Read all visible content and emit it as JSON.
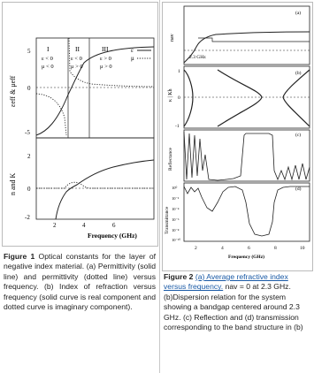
{
  "fig1": {
    "top": {
      "ylabel": "εeff & μeff",
      "yticks": [
        "5",
        "0",
        "-5"
      ],
      "regions": [
        {
          "roman": "I",
          "line1": "ε < 0",
          "line2": "μ < 0"
        },
        {
          "roman": "II",
          "line1": "ε < 0",
          "line2": "μ > 0"
        },
        {
          "roman": "III",
          "line1": "ε > 0",
          "line2": "μ > 0"
        }
      ],
      "legend": [
        {
          "label": "ε",
          "style": "solid"
        },
        {
          "label": "μ",
          "style": "dotted"
        }
      ]
    },
    "bottom": {
      "ylabel": "n and K",
      "yticks": [
        "2",
        "0",
        "-2"
      ],
      "xticks": [
        "2",
        "4",
        "6"
      ],
      "xlabel": "Frequency (GHz)"
    },
    "caption": {
      "label": "Figure 1",
      "text": " Optical constants for the layer of negative index material. (a) Permittivity (solid line) and permittivity (dotted line) versus frequency. (b) Index of refraction versus frequency (solid curve is real component and dotted curve is imaginary component)."
    }
  },
  "fig2": {
    "panels": {
      "a": {
        "letter": "(a)",
        "ylabel": "nav",
        "annotation": "2.3 GHz"
      },
      "b": {
        "letter": "(b)",
        "ylabel": "κ | Kh",
        "yticks": [
          "1",
          "0",
          "-1"
        ]
      },
      "c": {
        "letter": "(c)",
        "ylabel": "Reflectance"
      },
      "d": {
        "letter": "(d)",
        "ylabel": "Transmittance",
        "yticks": [
          "10⁰",
          "10⁻²",
          "10⁻⁴",
          "10⁻⁶",
          "10⁻⁸",
          "10⁻¹⁰"
        ]
      }
    },
    "xticks": [
      "2",
      "4",
      "6",
      "8",
      "10"
    ],
    "xlabel": "Frequency (GHz)",
    "caption": {
      "label": "Figure 2",
      "link": "(a) Average refractive index versus frequency.",
      "p1": " nav = 0 at 2.3 GHz.",
      "p2": "(b)Dispersion relation for the system showing a bandgap centered around 2.3 GHz. (c) Reflection and (d) transmission corresponding to the band structure in (b)"
    }
  },
  "colors": {
    "ink": "#222222",
    "link": "#1a5aa6",
    "border": "#bbbbbb"
  }
}
